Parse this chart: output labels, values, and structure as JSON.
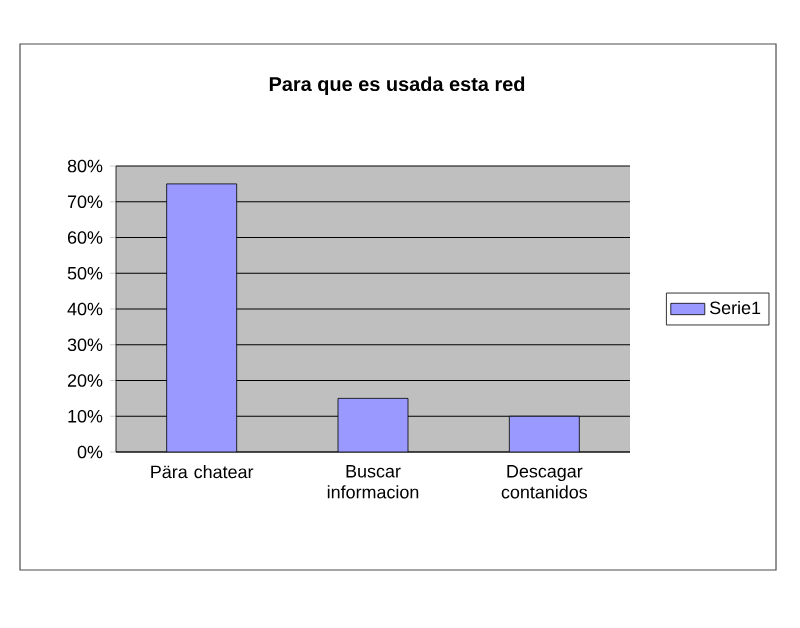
{
  "chart_data": {
    "type": "bar",
    "title": "Para que es usada esta red",
    "categories": [
      "Pära chatear",
      "Buscar informacion",
      "Descagar contanidos"
    ],
    "series": [
      {
        "name": "Serie1",
        "color": "#9999ff",
        "values": [
          75,
          15,
          10
        ]
      }
    ],
    "ylim": [
      0,
      80
    ],
    "yticks": [
      {
        "value": 0,
        "label": "0%"
      },
      {
        "value": 10,
        "label": "10%"
      },
      {
        "value": 20,
        "label": "20%"
      },
      {
        "value": 30,
        "label": "30%"
      },
      {
        "value": 40,
        "label": "40%"
      },
      {
        "value": 50,
        "label": "50%"
      },
      {
        "value": 60,
        "label": "60%"
      },
      {
        "value": 70,
        "label": "70%"
      },
      {
        "value": 80,
        "label": "80%"
      }
    ],
    "grid": "y",
    "legend": "right"
  }
}
